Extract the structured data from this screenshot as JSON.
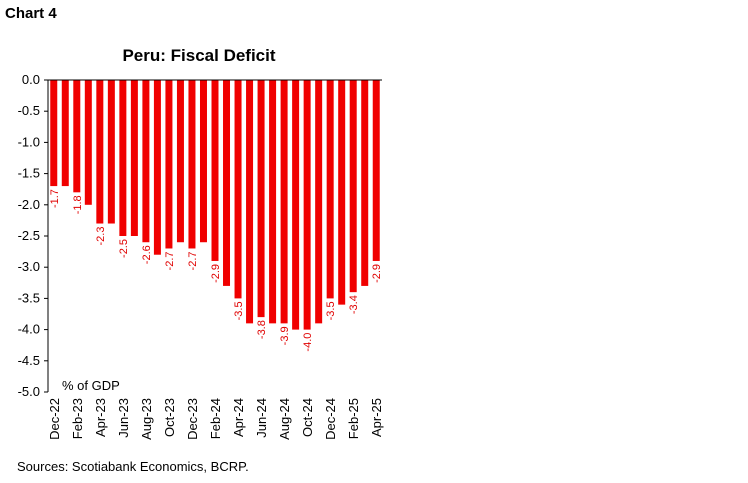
{
  "header": {
    "chart_number": "Chart 4"
  },
  "footer": {
    "source": "Sources: Scotiabank Economics, BCRP."
  },
  "colors": {
    "bar": "#f00000",
    "data_label": "#e00000",
    "axis": "#000000"
  },
  "chart_data": {
    "type": "bar",
    "title": "Peru: Fiscal Deficit",
    "unit_label": "% of GDP",
    "xlabel": "",
    "ylabel": "",
    "ylim": [
      -5.0,
      0.0
    ],
    "y_ticks": [
      "0.0",
      "-0.5",
      "-1.0",
      "-1.5",
      "-2.0",
      "-2.5",
      "-3.0",
      "-3.5",
      "-4.0",
      "-4.5",
      "-5.0"
    ],
    "grid": false,
    "categories": [
      "Dec-22",
      "Jan-23",
      "Feb-23",
      "Mar-23",
      "Apr-23",
      "May-23",
      "Jun-23",
      "Jul-23",
      "Aug-23",
      "Sep-23",
      "Oct-23",
      "Nov-23",
      "Dec-23",
      "Jan-24",
      "Feb-24",
      "Mar-24",
      "Apr-24",
      "May-24",
      "Jun-24",
      "Jul-24",
      "Aug-24",
      "Sep-24",
      "Oct-24",
      "Nov-24",
      "Dec-24",
      "Jan-25",
      "Feb-25",
      "Mar-25",
      "Apr-25"
    ],
    "x_tick_labels": [
      "Dec-22",
      "",
      "Feb-23",
      "",
      "Apr-23",
      "",
      "Jun-23",
      "",
      "Aug-23",
      "",
      "Oct-23",
      "",
      "Dec-23",
      "",
      "Feb-24",
      "",
      "Apr-24",
      "",
      "Jun-24",
      "",
      "Aug-24",
      "",
      "Oct-24",
      "",
      "Dec-24",
      "",
      "Feb-25",
      "",
      "Apr-25"
    ],
    "values": [
      -1.7,
      -1.7,
      -1.8,
      -2.0,
      -2.3,
      -2.3,
      -2.5,
      -2.5,
      -2.6,
      -2.8,
      -2.7,
      -2.6,
      -2.7,
      -2.6,
      -2.9,
      -3.3,
      -3.5,
      -3.9,
      -3.8,
      -3.9,
      -3.9,
      -4.0,
      -4.0,
      -3.9,
      -3.5,
      -3.6,
      -3.4,
      -3.3,
      -2.9
    ],
    "data_labels": [
      "-1.7",
      "",
      "-1.8",
      "",
      "-2.3",
      "",
      "-2.5",
      "",
      "-2.6",
      "",
      "-2.7",
      "",
      "-2.7",
      "",
      "-2.9",
      "",
      "-3.5",
      "",
      "-3.8",
      "",
      "-3.9",
      "",
      "-4.0",
      "",
      "-3.5",
      "",
      "-3.4",
      "",
      "-2.9"
    ]
  }
}
